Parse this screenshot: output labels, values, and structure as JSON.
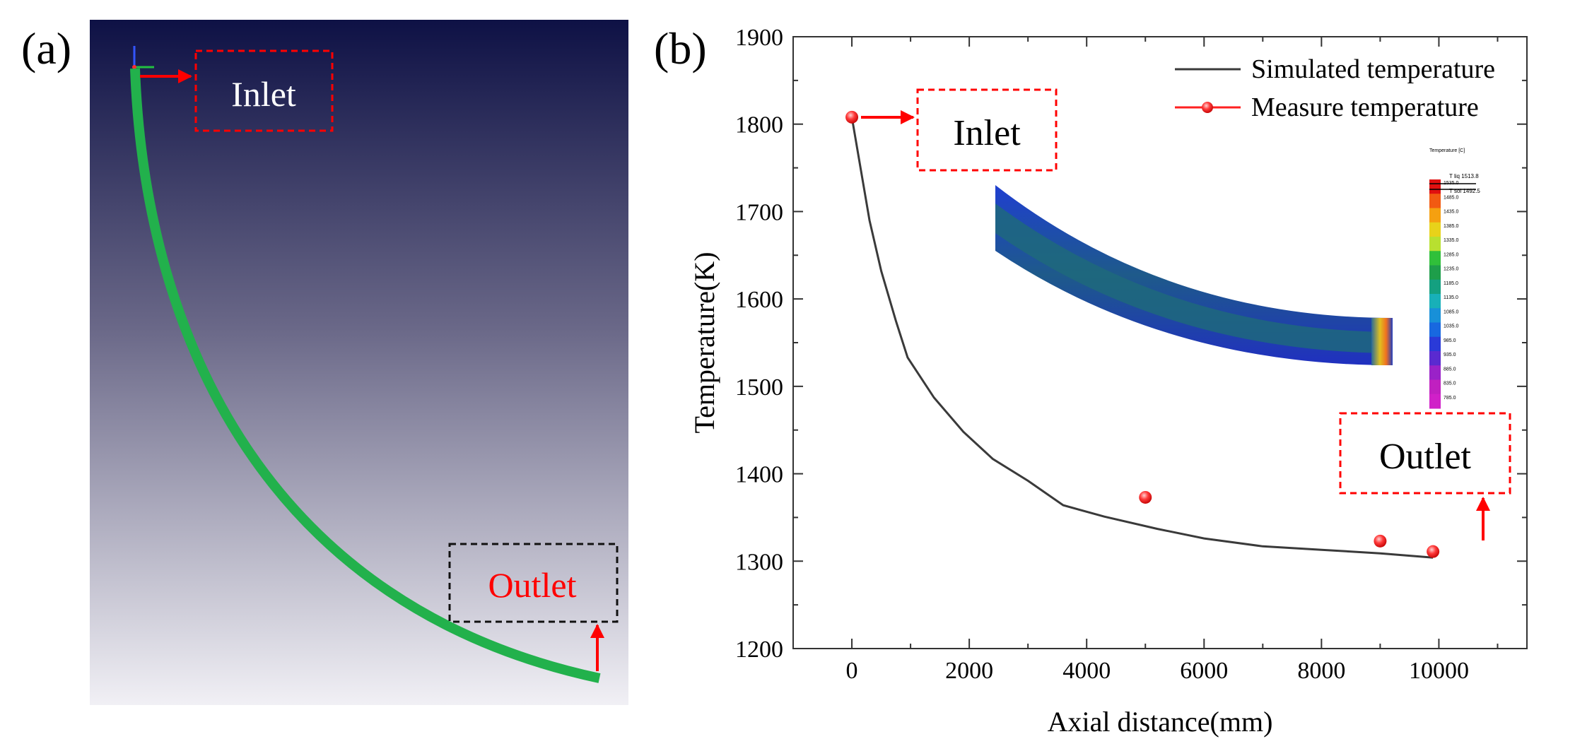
{
  "panel_a": {
    "label": "(a)",
    "inlet_label": "Inlet",
    "outlet_label": "Outlet",
    "colors": {
      "bg_top": "#0e1145",
      "bg_bottom": "#f1f0f5",
      "pipe": "#22b14c",
      "arrow": "#ff0000",
      "inlet_box": "#ff0000",
      "outlet_box": "#111111",
      "outlet_text": "#ff0000"
    }
  },
  "panel_b": {
    "label": "(b)",
    "inlet_label": "Inlet",
    "outlet_label": "Outlet"
  },
  "inset": {
    "title": "Temperature [C]",
    "scale_ticks": [
      "1535.0",
      "1485.0",
      "1435.0",
      "1385.0",
      "1335.0",
      "1285.0",
      "1235.0",
      "1185.0",
      "1135.0",
      "1085.0",
      "1035.0",
      "985.0",
      "935.0",
      "885.0",
      "835.0",
      "785.0"
    ],
    "tliq_label": "T liq 1513.8",
    "tsol_label": "T sol   1492.5",
    "scale_colors": [
      "#e01010",
      "#f25a12",
      "#f5a010",
      "#e8d21a",
      "#b8e030",
      "#30c03a",
      "#1e9e4a",
      "#14a080",
      "#18b0b8",
      "#1890d8",
      "#1868e0",
      "#2a3ad8",
      "#5a2ad0",
      "#9a22c8",
      "#c020c0",
      "#d020c8"
    ]
  },
  "chart_data": {
    "type": "line",
    "title": "",
    "xlabel": "Axial distance(mm)",
    "ylabel": "Temperature(K)",
    "xlim": [
      -1000,
      11500
    ],
    "ylim": [
      1200,
      1900
    ],
    "xticks": [
      0,
      2000,
      4000,
      6000,
      8000,
      10000
    ],
    "yticks": [
      1200,
      1300,
      1400,
      1500,
      1600,
      1700,
      1800,
      1900
    ],
    "grid": false,
    "legend_position": "top-right",
    "series": [
      {
        "name": "Simulated temperature",
        "style": "line",
        "color": "#3a3a3a",
        "x": [
          0,
          300,
          500,
          750,
          950,
          1400,
          1900,
          2400,
          3000,
          3600,
          4300,
          5200,
          6000,
          7000,
          8000,
          9000,
          9900
        ],
        "y": [
          1808,
          1690,
          1632,
          1575,
          1533,
          1487,
          1448,
          1417,
          1392,
          1364,
          1351,
          1337,
          1326,
          1317,
          1313,
          1309,
          1304
        ]
      },
      {
        "name": "Measure temperature",
        "style": "marker",
        "color": "#ff2020",
        "x": [
          0,
          5000,
          9000,
          9900
        ],
        "y": [
          1808,
          1373,
          1323,
          1311
        ]
      }
    ]
  }
}
